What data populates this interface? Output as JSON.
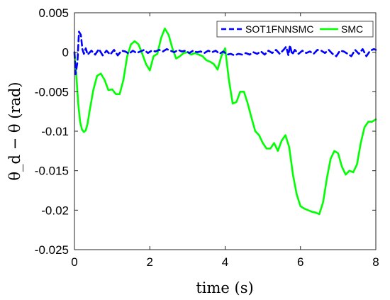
{
  "chart_data": {
    "type": "line",
    "xlabel": "time (s)",
    "ylabel": "θ_d − θ (rad)",
    "xlim": [
      0,
      8
    ],
    "ylim": [
      -0.025,
      0.005
    ],
    "xticks": [
      0,
      2,
      4,
      6,
      8
    ],
    "xtick_labels": [
      "0",
      "2",
      "4",
      "6",
      "8"
    ],
    "yticks": [
      0.005,
      0,
      -0.005,
      -0.01,
      -0.015,
      -0.02,
      -0.025
    ],
    "ytick_labels": [
      "0.005",
      "0",
      "-0.005",
      "-0.01",
      "-0.015",
      "-0.02",
      "-0.025"
    ],
    "grid": false,
    "legend_position": "top-right",
    "series": [
      {
        "name": "SOT1FNNSMC",
        "color": "#0000ff",
        "style": "dashed",
        "x": [
          0,
          0.03,
          0.08,
          0.12,
          0.17,
          0.21,
          0.25,
          0.3,
          0.35,
          0.45,
          0.55,
          0.65,
          0.75,
          0.85,
          0.95,
          1.05,
          1.15,
          1.25,
          1.35,
          1.45,
          1.55,
          1.65,
          1.75,
          1.85,
          1.95,
          2.05,
          2.15,
          2.25,
          2.35,
          2.45,
          2.55,
          2.65,
          2.75,
          2.85,
          2.95,
          3.05,
          3.15,
          3.25,
          3.35,
          3.45,
          3.55,
          3.65,
          3.75,
          3.85,
          3.95,
          4.05,
          4.15,
          4.25,
          4.35,
          4.45,
          4.55,
          4.65,
          4.75,
          4.85,
          4.95,
          5.05,
          5.15,
          5.25,
          5.35,
          5.45,
          5.55,
          5.62,
          5.68,
          5.72,
          5.78,
          5.85,
          5.95,
          6.05,
          6.15,
          6.25,
          6.35,
          6.45,
          6.55,
          6.65,
          6.75,
          6.85,
          6.95,
          7.05,
          7.15,
          7.25,
          7.35,
          7.45,
          7.55,
          7.65,
          7.75,
          7.85,
          7.95,
          8.0
        ],
        "y": [
          0,
          -0.0028,
          -0.0012,
          0.0026,
          0.0022,
          0.0004,
          -0.0002,
          0.0005,
          -0.0003,
          0.0002,
          -0.0003,
          0.0004,
          -0.0004,
          0.0002,
          -0.0003,
          0.0003,
          -0.0004,
          0.0002,
          0.0001,
          -0.0002,
          0.0002,
          -0.0001,
          0.0001,
          0.0003,
          -0.0001,
          0.0002,
          0.0001,
          0.0003,
          0.0001,
          0.0004,
          0.0002,
          0.0,
          0.0003,
          0.0001,
          0.0002,
          -0.0001,
          0.0002,
          0.0,
          0.0001,
          -0.0001,
          0.0002,
          0.0,
          0.0002,
          -0.0002,
          0.0001,
          -0.0003,
          -0.0002,
          -0.0004,
          -0.0002,
          -0.0003,
          -0.0001,
          -0.0003,
          0.0,
          -0.0002,
          0.0001,
          -0.0003,
          0.0002,
          -0.0001,
          0.0003,
          -0.0002,
          0.0003,
          0.0007,
          -0.0004,
          0.0009,
          -0.0003,
          0.0003,
          -0.0002,
          0.0002,
          -0.0001,
          0.0001,
          -0.0002,
          0.0003,
          0.0002,
          -0.0001,
          0.0003,
          -0.0002,
          -0.0005,
          0.0002,
          0.0001,
          -0.0002,
          -0.0005,
          0.0003,
          -0.0002,
          0.0004,
          -0.0005,
          0.0002,
          0.0004,
          0.0003
        ]
      },
      {
        "name": "SMC",
        "color": "#00ff00",
        "style": "solid",
        "x": [
          0,
          0.05,
          0.1,
          0.15,
          0.2,
          0.25,
          0.3,
          0.35,
          0.4,
          0.5,
          0.6,
          0.7,
          0.8,
          0.9,
          1.0,
          1.1,
          1.2,
          1.3,
          1.4,
          1.5,
          1.6,
          1.7,
          1.8,
          1.9,
          2.0,
          2.1,
          2.2,
          2.3,
          2.4,
          2.5,
          2.6,
          2.7,
          2.8,
          2.9,
          3.0,
          3.1,
          3.2,
          3.3,
          3.4,
          3.5,
          3.6,
          3.7,
          3.8,
          3.9,
          4.0,
          4.1,
          4.2,
          4.3,
          4.4,
          4.5,
          4.6,
          4.7,
          4.8,
          4.9,
          5.0,
          5.1,
          5.2,
          5.3,
          5.4,
          5.5,
          5.6,
          5.7,
          5.8,
          5.9,
          6.0,
          6.1,
          6.2,
          6.3,
          6.4,
          6.5,
          6.6,
          6.7,
          6.8,
          6.9,
          7.0,
          7.1,
          7.2,
          7.3,
          7.4,
          7.5,
          7.6,
          7.7,
          7.8,
          7.9,
          8.0
        ],
        "y": [
          0,
          -0.003,
          -0.0065,
          -0.0088,
          -0.0098,
          -0.0101,
          -0.0099,
          -0.009,
          -0.0075,
          -0.0048,
          -0.003,
          -0.0027,
          -0.0035,
          -0.0048,
          -0.0047,
          -0.0053,
          -0.0053,
          -0.0035,
          -0.0005,
          0.001,
          0.0014,
          0.001,
          -0.0002,
          -0.0015,
          -0.0023,
          -0.0005,
          -0.0002,
          0.0018,
          0.003,
          0.0022,
          0.0005,
          -0.0008,
          -0.0005,
          -0.0001,
          0.0,
          -0.0003,
          -0.0001,
          -0.0003,
          -0.0005,
          -0.001,
          -0.0012,
          -0.0015,
          -0.0022,
          -0.0005,
          0.0005,
          -0.0035,
          -0.0065,
          -0.0063,
          -0.005,
          -0.005,
          -0.0065,
          -0.0083,
          -0.01,
          -0.0105,
          -0.0115,
          -0.0122,
          -0.0122,
          -0.0115,
          -0.0125,
          -0.0112,
          -0.0105,
          -0.012,
          -0.0155,
          -0.018,
          -0.0195,
          -0.0198,
          -0.02,
          -0.0202,
          -0.0203,
          -0.0205,
          -0.019,
          -0.016,
          -0.0135,
          -0.0125,
          -0.0128,
          -0.0145,
          -0.0155,
          -0.015,
          -0.0152,
          -0.0142,
          -0.0115,
          -0.0095,
          -0.0088,
          -0.0088,
          -0.0085
        ]
      }
    ]
  }
}
